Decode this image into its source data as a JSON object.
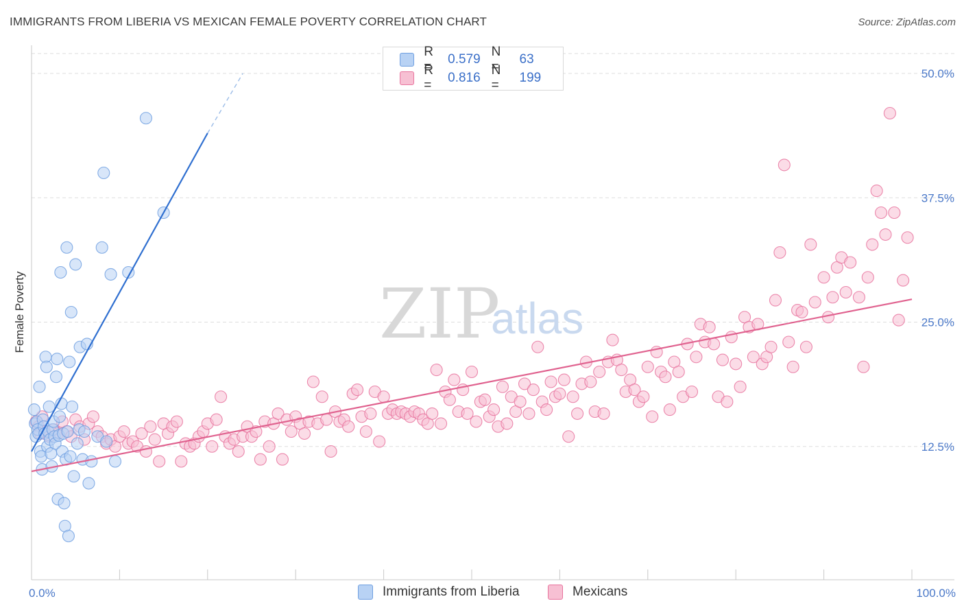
{
  "title": "IMMIGRANTS FROM LIBERIA VS MEXICAN FEMALE POVERTY CORRELATION CHART",
  "source": "Source: ZipAtlas.com",
  "watermark": {
    "zip": "ZIP",
    "atlas": "atlas"
  },
  "colors": {
    "blue": "#6f9fe0",
    "blue_fill": "#b8d2f4",
    "pink": "#e8739d",
    "pink_fill": "#f7c0d3",
    "axis_text": "#4a78c8",
    "grid": "#dddddd"
  },
  "legend": {
    "rows": [
      {
        "r_label": "R =",
        "r_value": "0.579",
        "n_label": "N =",
        "n_value": "63"
      },
      {
        "r_label": "R =",
        "r_value": "0.816",
        "n_label": "N =",
        "n_value": "199"
      }
    ]
  },
  "bottom_legend": [
    "Immigrants from Liberia",
    "Mexicans"
  ],
  "chart_data": {
    "type": "scatter",
    "title": "IMMIGRANTS FROM LIBERIA VS MEXICAN FEMALE POVERTY CORRELATION CHART",
    "xlabel": "",
    "ylabel": "Female Poverty",
    "xlim": [
      0,
      100
    ],
    "ylim": [
      0,
      52
    ],
    "x_tick_labels": [
      "0.0%",
      "100.0%"
    ],
    "y_ticks": [
      12.5,
      25.0,
      37.5,
      50.0
    ],
    "y_tick_labels": [
      "12.5%",
      "25.0%",
      "37.5%",
      "50.0%"
    ],
    "grid": true,
    "series": [
      {
        "name": "Immigrants from Liberia",
        "color": "#6f9fe0",
        "trend": {
          "x0": 0,
          "y0": 12.0,
          "x1": 20,
          "y1": 44.0,
          "dash_to_x": 24,
          "dash_to_y": 50.0
        },
        "points": [
          [
            0.3,
            16.2
          ],
          [
            0.4,
            14.8
          ],
          [
            0.5,
            13.5
          ],
          [
            0.6,
            15.0
          ],
          [
            0.7,
            14.2
          ],
          [
            0.8,
            13.8
          ],
          [
            0.9,
            18.5
          ],
          [
            1.0,
            12.0
          ],
          [
            1.1,
            11.5
          ],
          [
            1.2,
            10.2
          ],
          [
            1.3,
            15.2
          ],
          [
            1.4,
            14.5
          ],
          [
            1.5,
            13.8
          ],
          [
            1.6,
            21.5
          ],
          [
            1.7,
            20.5
          ],
          [
            1.8,
            12.5
          ],
          [
            1.9,
            14.0
          ],
          [
            2.0,
            16.5
          ],
          [
            2.1,
            13.2
          ],
          [
            2.2,
            11.8
          ],
          [
            2.3,
            10.5
          ],
          [
            2.4,
            14.2
          ],
          [
            2.5,
            15.0
          ],
          [
            2.6,
            13.5
          ],
          [
            2.7,
            12.8
          ],
          [
            2.8,
            19.5
          ],
          [
            2.9,
            21.3
          ],
          [
            3.0,
            7.2
          ],
          [
            3.1,
            13.6
          ],
          [
            3.2,
            15.5
          ],
          [
            3.3,
            30.0
          ],
          [
            3.4,
            16.8
          ],
          [
            3.5,
            12.0
          ],
          [
            3.6,
            13.8
          ],
          [
            3.7,
            6.8
          ],
          [
            3.8,
            4.5
          ],
          [
            3.9,
            11.2
          ],
          [
            4.0,
            32.5
          ],
          [
            4.1,
            14.0
          ],
          [
            4.2,
            3.5
          ],
          [
            4.3,
            21.0
          ],
          [
            4.4,
            11.5
          ],
          [
            4.5,
            26.0
          ],
          [
            4.6,
            16.5
          ],
          [
            4.8,
            9.5
          ],
          [
            5.0,
            30.8
          ],
          [
            5.2,
            12.8
          ],
          [
            5.4,
            14.2
          ],
          [
            5.5,
            22.5
          ],
          [
            5.8,
            11.2
          ],
          [
            6.0,
            14.0
          ],
          [
            6.3,
            22.8
          ],
          [
            6.5,
            8.8
          ],
          [
            6.8,
            11.0
          ],
          [
            7.5,
            13.5
          ],
          [
            8.0,
            32.5
          ],
          [
            8.5,
            13.0
          ],
          [
            9.0,
            29.8
          ],
          [
            9.5,
            11.0
          ],
          [
            8.2,
            40.0
          ],
          [
            11.0,
            30.0
          ],
          [
            13.0,
            45.5
          ],
          [
            15.0,
            36.0
          ]
        ]
      },
      {
        "name": "Mexicans",
        "color": "#e8739d",
        "trend": {
          "x0": 0,
          "y0": 10.0,
          "x1": 100,
          "y1": 27.3
        },
        "points": [
          [
            0.5,
            15.0
          ],
          [
            0.8,
            14.5
          ],
          [
            1.0,
            13.8
          ],
          [
            1.2,
            15.5
          ],
          [
            1.5,
            14.0
          ],
          [
            2.0,
            13.5
          ],
          [
            2.5,
            14.2
          ],
          [
            3.0,
            13.8
          ],
          [
            3.5,
            15.0
          ],
          [
            4.0,
            14.0
          ],
          [
            4.5,
            13.5
          ],
          [
            5.0,
            15.2
          ],
          [
            5.5,
            14.5
          ],
          [
            6.0,
            13.2
          ],
          [
            6.5,
            14.8
          ],
          [
            7.0,
            15.5
          ],
          [
            7.5,
            14.0
          ],
          [
            8.0,
            13.5
          ],
          [
            8.5,
            12.8
          ],
          [
            9.0,
            13.2
          ],
          [
            9.5,
            12.5
          ],
          [
            10.0,
            13.5
          ],
          [
            10.5,
            14.0
          ],
          [
            11.0,
            12.8
          ],
          [
            11.5,
            13.0
          ],
          [
            12.0,
            12.5
          ],
          [
            12.5,
            13.8
          ],
          [
            13.0,
            12.0
          ],
          [
            13.5,
            14.5
          ],
          [
            14.0,
            13.2
          ],
          [
            14.5,
            11.0
          ],
          [
            15.0,
            14.8
          ],
          [
            15.5,
            13.8
          ],
          [
            16.0,
            14.5
          ],
          [
            16.5,
            15.0
          ],
          [
            17.0,
            11.0
          ],
          [
            17.5,
            12.8
          ],
          [
            18.0,
            12.5
          ],
          [
            18.5,
            12.8
          ],
          [
            19.0,
            13.5
          ],
          [
            19.5,
            14.0
          ],
          [
            20.0,
            14.8
          ],
          [
            20.5,
            12.5
          ],
          [
            21.0,
            15.2
          ],
          [
            21.5,
            17.5
          ],
          [
            22.0,
            13.5
          ],
          [
            22.5,
            12.8
          ],
          [
            23.0,
            13.2
          ],
          [
            23.5,
            12.0
          ],
          [
            24.0,
            13.5
          ],
          [
            24.5,
            14.5
          ],
          [
            25.0,
            13.5
          ],
          [
            25.5,
            14.0
          ],
          [
            26.0,
            11.2
          ],
          [
            26.5,
            15.0
          ],
          [
            27.0,
            12.5
          ],
          [
            27.5,
            14.8
          ],
          [
            28.0,
            15.8
          ],
          [
            28.5,
            11.2
          ],
          [
            29.0,
            15.2
          ],
          [
            29.5,
            14.0
          ],
          [
            30.0,
            15.5
          ],
          [
            30.5,
            14.8
          ],
          [
            31.0,
            13.8
          ],
          [
            31.5,
            15.0
          ],
          [
            32.0,
            19.0
          ],
          [
            32.5,
            14.8
          ],
          [
            33.0,
            17.5
          ],
          [
            33.5,
            15.2
          ],
          [
            34.0,
            12.0
          ],
          [
            34.5,
            16.0
          ],
          [
            35.0,
            15.0
          ],
          [
            35.5,
            15.2
          ],
          [
            36.0,
            14.5
          ],
          [
            36.5,
            17.8
          ],
          [
            37.0,
            18.2
          ],
          [
            37.5,
            15.5
          ],
          [
            38.0,
            14.0
          ],
          [
            38.5,
            15.8
          ],
          [
            39.0,
            18.0
          ],
          [
            39.5,
            13.0
          ],
          [
            40.0,
            17.5
          ],
          [
            40.5,
            15.8
          ],
          [
            41.0,
            16.2
          ],
          [
            41.5,
            15.8
          ],
          [
            42.0,
            16.0
          ],
          [
            42.5,
            15.8
          ],
          [
            43.0,
            15.5
          ],
          [
            43.5,
            16.0
          ],
          [
            44.0,
            15.8
          ],
          [
            44.5,
            15.2
          ],
          [
            45.0,
            14.8
          ],
          [
            45.5,
            15.8
          ],
          [
            46.0,
            20.2
          ],
          [
            46.5,
            14.8
          ],
          [
            47.0,
            18.0
          ],
          [
            47.5,
            17.2
          ],
          [
            48.0,
            19.2
          ],
          [
            48.5,
            16.0
          ],
          [
            49.0,
            18.2
          ],
          [
            49.5,
            15.8
          ],
          [
            50.0,
            20.0
          ],
          [
            50.5,
            15.0
          ],
          [
            51.0,
            17.0
          ],
          [
            51.5,
            17.2
          ],
          [
            52.0,
            15.5
          ],
          [
            52.5,
            16.2
          ],
          [
            53.0,
            14.5
          ],
          [
            53.5,
            18.5
          ],
          [
            54.0,
            14.8
          ],
          [
            54.5,
            17.5
          ],
          [
            55.0,
            16.0
          ],
          [
            55.5,
            17.0
          ],
          [
            56.0,
            18.8
          ],
          [
            56.5,
            15.8
          ],
          [
            57.0,
            18.2
          ],
          [
            57.5,
            22.5
          ],
          [
            58.0,
            17.0
          ],
          [
            58.5,
            16.2
          ],
          [
            59.0,
            19.0
          ],
          [
            59.5,
            17.5
          ],
          [
            60.0,
            17.8
          ],
          [
            60.5,
            19.2
          ],
          [
            61.0,
            13.5
          ],
          [
            61.5,
            17.5
          ],
          [
            62.0,
            15.8
          ],
          [
            62.5,
            18.8
          ],
          [
            63.0,
            21.0
          ],
          [
            63.5,
            19.0
          ],
          [
            64.0,
            16.0
          ],
          [
            64.5,
            20.0
          ],
          [
            65.0,
            15.8
          ],
          [
            65.5,
            21.0
          ],
          [
            66.0,
            23.2
          ],
          [
            66.5,
            21.2
          ],
          [
            67.0,
            20.2
          ],
          [
            67.5,
            18.0
          ],
          [
            68.0,
            19.2
          ],
          [
            68.5,
            18.2
          ],
          [
            69.0,
            17.0
          ],
          [
            69.5,
            17.5
          ],
          [
            70.0,
            20.5
          ],
          [
            70.5,
            15.5
          ],
          [
            71.0,
            22.0
          ],
          [
            71.5,
            20.0
          ],
          [
            72.0,
            19.5
          ],
          [
            72.5,
            16.2
          ],
          [
            73.0,
            21.0
          ],
          [
            73.5,
            20.0
          ],
          [
            74.0,
            17.5
          ],
          [
            74.5,
            22.8
          ],
          [
            75.0,
            18.0
          ],
          [
            75.5,
            21.5
          ],
          [
            76.0,
            24.8
          ],
          [
            76.5,
            23.0
          ],
          [
            77.0,
            24.5
          ],
          [
            77.5,
            22.8
          ],
          [
            78.0,
            17.5
          ],
          [
            78.5,
            21.2
          ],
          [
            79.0,
            17.0
          ],
          [
            79.5,
            23.5
          ],
          [
            80.0,
            20.8
          ],
          [
            80.5,
            18.5
          ],
          [
            81.0,
            25.5
          ],
          [
            81.5,
            24.5
          ],
          [
            82.0,
            21.5
          ],
          [
            82.5,
            24.8
          ],
          [
            83.0,
            20.8
          ],
          [
            83.5,
            21.5
          ],
          [
            84.0,
            22.5
          ],
          [
            84.5,
            27.2
          ],
          [
            85.0,
            32.0
          ],
          [
            85.5,
            40.8
          ],
          [
            86.0,
            23.0
          ],
          [
            86.5,
            20.5
          ],
          [
            87.0,
            26.2
          ],
          [
            87.5,
            26.0
          ],
          [
            88.0,
            22.5
          ],
          [
            88.5,
            32.8
          ],
          [
            89.0,
            27.0
          ],
          [
            90.0,
            29.5
          ],
          [
            90.5,
            25.5
          ],
          [
            91.0,
            27.5
          ],
          [
            91.5,
            30.5
          ],
          [
            92.0,
            31.5
          ],
          [
            92.5,
            28.0
          ],
          [
            93.0,
            31.0
          ],
          [
            94.0,
            27.5
          ],
          [
            94.5,
            20.5
          ],
          [
            95.0,
            29.5
          ],
          [
            95.5,
            32.8
          ],
          [
            96.0,
            38.2
          ],
          [
            96.5,
            36.0
          ],
          [
            97.0,
            33.8
          ],
          [
            97.5,
            46.0
          ],
          [
            98.0,
            36.0
          ],
          [
            98.5,
            25.2
          ],
          [
            99.0,
            29.2
          ],
          [
            99.5,
            33.5
          ]
        ]
      }
    ]
  }
}
